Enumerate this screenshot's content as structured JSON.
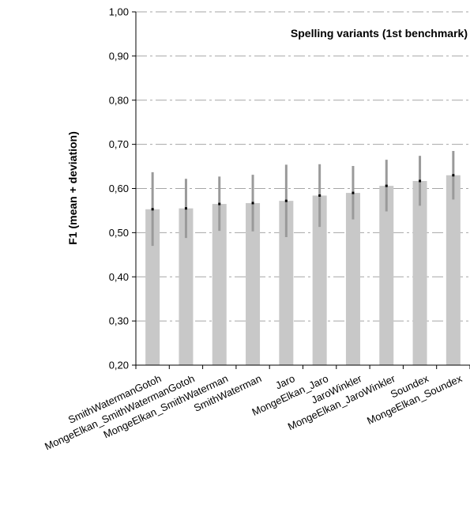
{
  "chart_data": {
    "type": "bar",
    "title": "Spelling variants (1st benchmark)",
    "xlabel": "",
    "ylabel": "F1 (mean + deviation)",
    "ylim": [
      0.2,
      1.0
    ],
    "yticks": [
      "0,20",
      "0,30",
      "0,40",
      "0,50",
      "0,60",
      "0,70",
      "0,80",
      "0,90",
      "1,00"
    ],
    "grid": true,
    "categories": [
      "SmithWatermanGotoh",
      "MongeElkan_SmithWatermanGotoh",
      "MongeElkan_SmithWaterman",
      "SmithWaterman",
      "Jaro",
      "MongeElkan_Jaro",
      "JaroWinkler",
      "MongeElkan_JaroWinkler",
      "Soundex",
      "MongeElkan_Soundex"
    ],
    "series": [
      {
        "values": [
          0.553,
          0.555,
          0.565,
          0.567,
          0.572,
          0.584,
          0.59,
          0.606,
          0.617,
          0.63
        ]
      }
    ],
    "error_low": [
      0.47,
      0.488,
      0.504,
      0.503,
      0.49,
      0.513,
      0.53,
      0.548,
      0.561,
      0.575
    ],
    "error_high": [
      0.637,
      0.622,
      0.627,
      0.631,
      0.654,
      0.655,
      0.651,
      0.665,
      0.674,
      0.685
    ],
    "colors": {
      "bar": "#c8c8c8",
      "error_bar": "#9a9a9a",
      "grid": "#a6a6a6",
      "marker": "#000000"
    }
  }
}
